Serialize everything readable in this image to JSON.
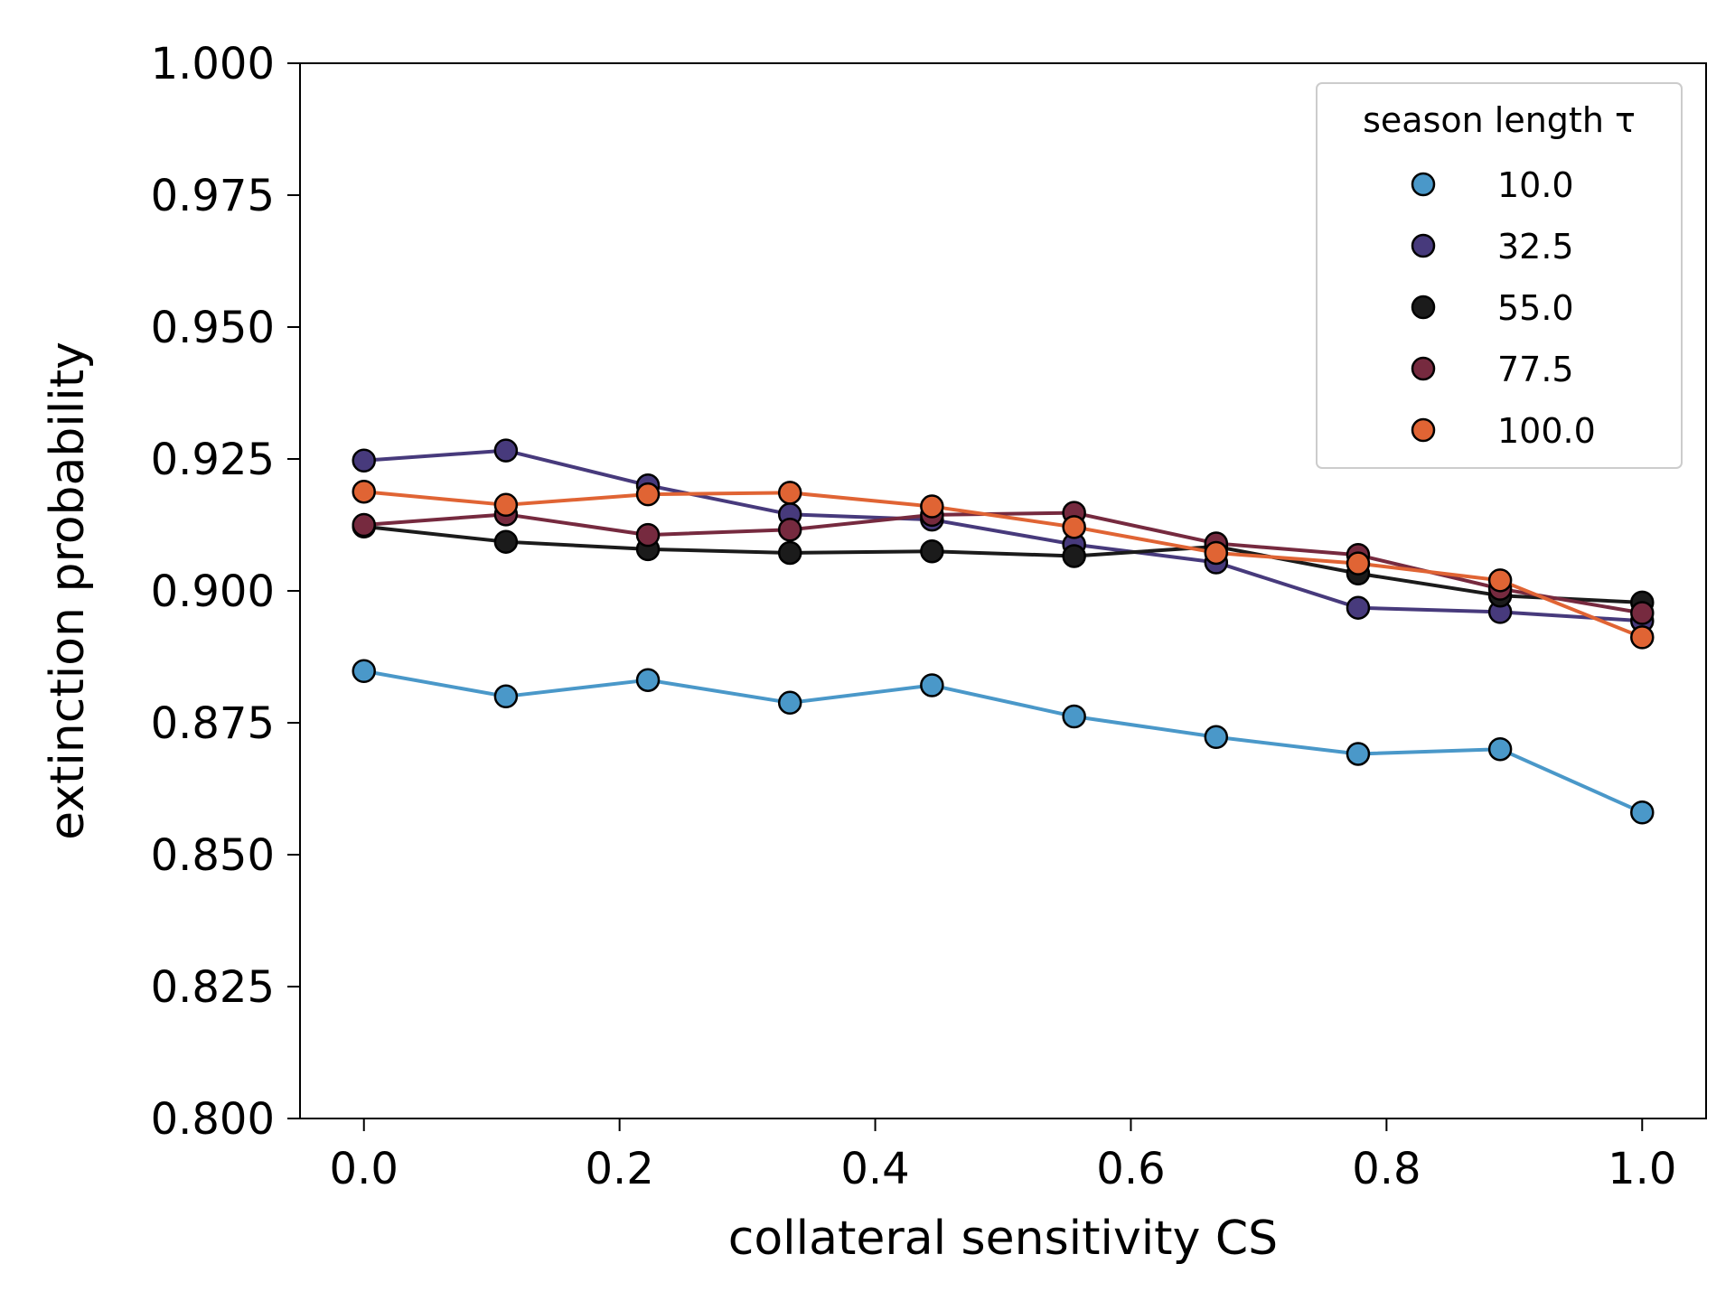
{
  "chart_data": {
    "type": "line",
    "title": "",
    "xlabel": "collateral sensitivity CS",
    "ylabel": "extinction probability",
    "xlim": [
      -0.05,
      1.05
    ],
    "ylim": [
      0.8,
      1.0
    ],
    "xticks": [
      0.0,
      0.2,
      0.4,
      0.6,
      0.8,
      1.0
    ],
    "xtick_labels": [
      "0.0",
      "0.2",
      "0.4",
      "0.6",
      "0.8",
      "1.0"
    ],
    "yticks": [
      0.8,
      0.825,
      0.85,
      0.875,
      0.9,
      0.925,
      0.95,
      0.975,
      1.0
    ],
    "ytick_labels": [
      "0.800",
      "0.825",
      "0.850",
      "0.875",
      "0.900",
      "0.925",
      "0.950",
      "0.975",
      "1.000"
    ],
    "grid": false,
    "legend": {
      "title": "season length τ",
      "placement": "top-right"
    },
    "x": [
      0.0,
      0.1111,
      0.2222,
      0.3333,
      0.4444,
      0.5556,
      0.6667,
      0.7778,
      0.8889,
      1.0
    ],
    "series": [
      {
        "name": "10.0",
        "color": "#4a98c9",
        "values": [
          0.8848,
          0.88,
          0.8831,
          0.8788,
          0.8821,
          0.8762,
          0.8723,
          0.8691,
          0.87,
          0.858
        ]
      },
      {
        "name": "32.5",
        "color": "#473a7c",
        "values": [
          0.9247,
          0.9266,
          0.92,
          0.9145,
          0.9135,
          0.9088,
          0.9054,
          0.8968,
          0.896,
          0.8943
        ]
      },
      {
        "name": "55.0",
        "color": "#1b1b1b",
        "values": [
          0.9122,
          0.9093,
          0.9079,
          0.9072,
          0.9075,
          0.9066,
          0.9084,
          0.9033,
          0.8991,
          0.8978
        ]
      },
      {
        "name": "77.5",
        "color": "#762a3f",
        "values": [
          0.9125,
          0.9145,
          0.9106,
          0.9116,
          0.9144,
          0.9148,
          0.909,
          0.9068,
          0.9004,
          0.8958
        ]
      },
      {
        "name": "100.0",
        "color": "#e06434",
        "values": [
          0.9188,
          0.9163,
          0.9183,
          0.9186,
          0.916,
          0.9121,
          0.9072,
          0.9052,
          0.902,
          0.8912
        ]
      }
    ]
  }
}
